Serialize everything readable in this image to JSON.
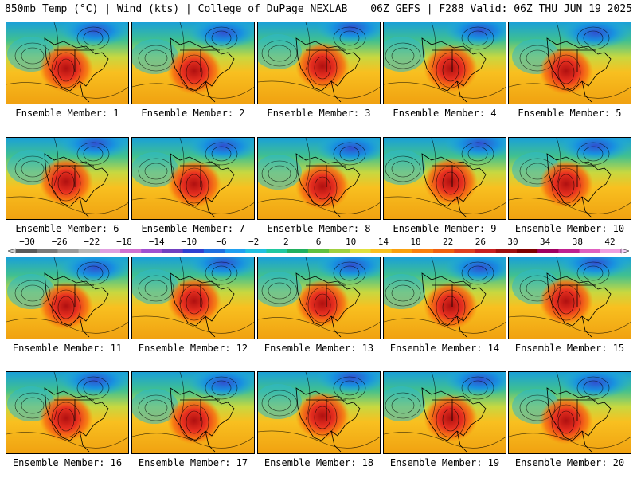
{
  "header": {
    "left": "850mb Temp (°C) | Wind (kts) | College of DuPage NEXLAB",
    "right": "06Z GEFS | F288 Valid: 06Z THU JUN 19 2025"
  },
  "member_prefix": "Ensemble Member: ",
  "members": [
    1,
    2,
    3,
    4,
    5,
    6,
    7,
    8,
    9,
    10,
    11,
    12,
    13,
    14,
    15,
    16,
    17,
    18,
    19,
    20
  ],
  "colorbar": {
    "ticks": [
      -30,
      -26,
      -22,
      -18,
      -14,
      -10,
      -6,
      -2,
      2,
      6,
      10,
      14,
      18,
      22,
      26,
      30,
      34,
      38,
      42
    ],
    "colors": [
      "#5a5a5a",
      "#7a7a7a",
      "#9a9a9a",
      "#b8b8b8",
      "#e0a0e0",
      "#d070d0",
      "#a050d0",
      "#7040c0",
      "#3040d0",
      "#2070e0",
      "#20a0f0",
      "#20c0e0",
      "#20c8a0",
      "#20b060",
      "#60c040",
      "#a0d040",
      "#e0e040",
      "#f8c020",
      "#f8a010",
      "#f88010",
      "#f06010",
      "#e04020",
      "#c82020",
      "#a01010",
      "#800000",
      "#a00060",
      "#c02090",
      "#e060c0",
      "#f0a0e0"
    ]
  }
}
